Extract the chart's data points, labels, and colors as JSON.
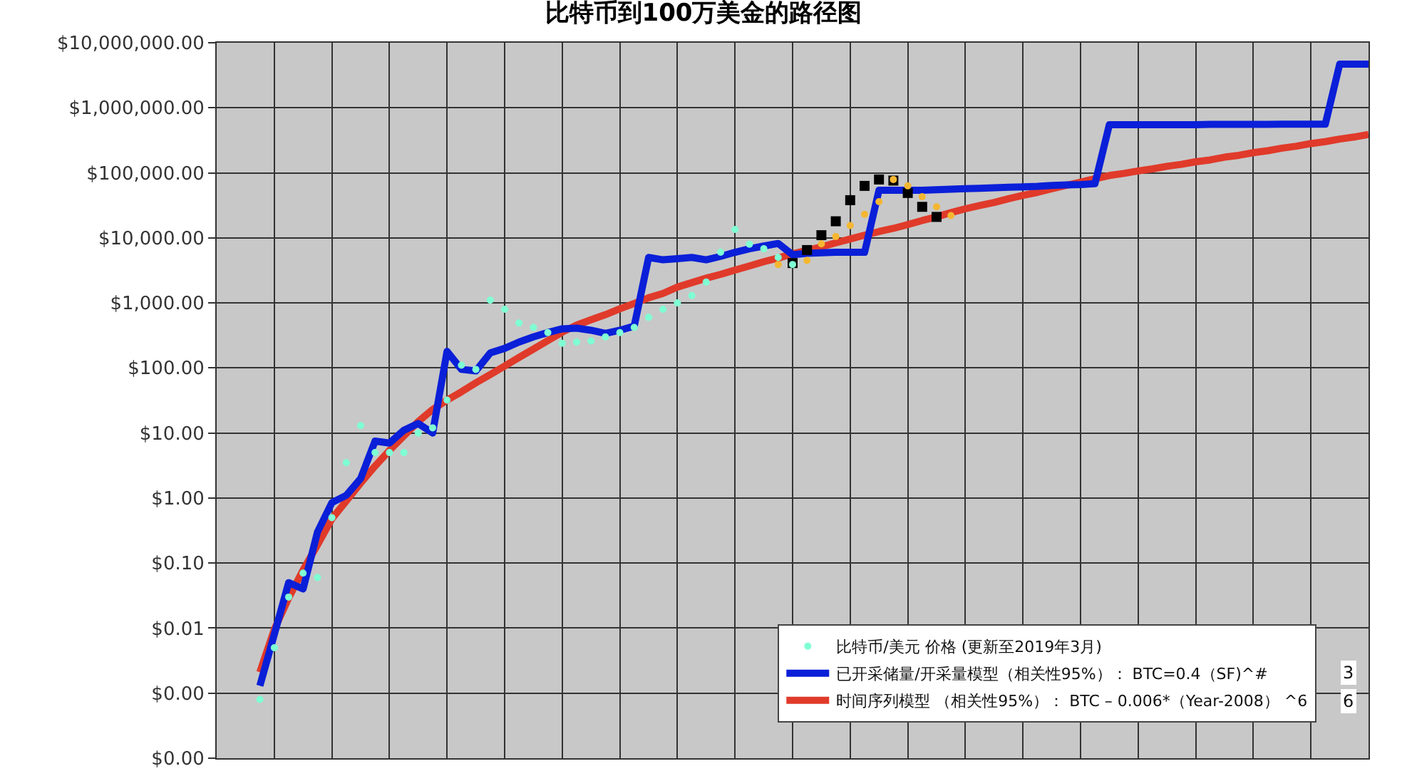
{
  "chart_data": {
    "type": "scatter",
    "title": "比特币到100万美金的路径图",
    "log": "y",
    "grid": true,
    "legend": "bottom right",
    "tick_labels": "y",
    "categories": [
      null,
      null,
      null,
      null,
      null,
      null,
      null,
      null,
      null,
      null,
      null,
      null,
      null,
      null,
      null,
      null,
      null,
      null,
      null,
      null,
      null,
      null,
      null,
      null,
      null,
      null,
      null,
      null,
      null,
      null,
      null,
      null,
      null,
      null,
      null,
      null,
      null,
      null,
      null,
      null,
      null,
      null,
      null,
      null,
      null,
      null,
      null,
      null,
      null,
      null,
      null,
      null,
      null,
      null,
      null,
      null,
      null,
      null,
      null,
      null,
      null,
      null,
      null,
      null,
      null,
      null,
      null,
      null,
      null,
      null,
      null,
      null,
      null,
      null,
      null,
      null,
      null,
      null,
      null,
      null,
      null
    ],
    "ylim": [
      0.0001,
      10000000
    ],
    "yticks": [
      {
        "value": 0.0001,
        "label": "$0.00"
      },
      {
        "value": 0.001,
        "label": "$0.00"
      },
      {
        "value": 0.01,
        "label": "$0.01"
      },
      {
        "value": 0.1,
        "label": "$0.10"
      },
      {
        "value": 1,
        "label": "$1.00"
      },
      {
        "value": 10,
        "label": "$10.00"
      },
      {
        "value": 100,
        "label": "$100.00"
      },
      {
        "value": 1000,
        "label": "$1,000.00"
      },
      {
        "value": 10000,
        "label": "$10,000.00"
      },
      {
        "value": 100000,
        "label": "$100,000.00"
      },
      {
        "value": 1000000,
        "label": "$1,000,000.00"
      },
      {
        "value": 10000000,
        "label": "$10,000,000.00"
      }
    ],
    "annotations": [
      "3",
      "6"
    ],
    "series": [
      {
        "name": "比特币/美元 价格 (更新至2019年3月)",
        "marker": "circle",
        "color": "#7fffd4",
        "values": [
          null,
          null,
          null,
          0.0008,
          0.005,
          0.03,
          0.07,
          0.06,
          0.5,
          3.5,
          13,
          5,
          5,
          5,
          10,
          12,
          32,
          110,
          95,
          1100,
          800,
          490,
          420,
          350,
          240,
          250,
          260,
          300,
          350,
          420,
          600,
          800,
          1000,
          1300,
          2100,
          6000,
          13500,
          8000,
          6800,
          5000,
          3900,
          null,
          null,
          null,
          null,
          null,
          null,
          null,
          null,
          null,
          null,
          null,
          null,
          null,
          null,
          null,
          null,
          null,
          null,
          null,
          null,
          null,
          null,
          null,
          null,
          null,
          null,
          null,
          null,
          null,
          null,
          null,
          null,
          null,
          null,
          null,
          null,
          null,
          null,
          null,
          null
        ]
      },
      {
        "name": "已开采储量/开采量模型（相关性95%）： BTC=0.4（SF)^#",
        "type": "line",
        "line_style": "solid",
        "color": "#0a1fd8",
        "values": [
          null,
          null,
          null,
          0.0013,
          0.008,
          0.05,
          0.04,
          0.3,
          0.85,
          1.1,
          2,
          7.5,
          7,
          11,
          14,
          10,
          180,
          95,
          90,
          170,
          200,
          250,
          300,
          350,
          400,
          410,
          380,
          340,
          380,
          440,
          5000,
          4600,
          4800,
          5000,
          4600,
          5200,
          6000,
          6800,
          7500,
          8200,
          5500,
          5800,
          5900,
          6000,
          6000,
          6000,
          54000,
          54000,
          54000,
          54000,
          55000,
          56000,
          57000,
          58000,
          59000,
          60000,
          61000,
          62000,
          64000,
          65000,
          66000,
          68000,
          550000,
          550000,
          550000,
          550000,
          550000,
          550000,
          550000,
          555000,
          555000,
          555000,
          555000,
          555000,
          560000,
          560000,
          560000,
          560000,
          4700000,
          4700000,
          4700000
        ]
      },
      {
        "name": "时间序列模型 （相关性95%）： BTC – 0.006*（Year-2008） ^6",
        "type": "line",
        "line_style": "solid",
        "color": "#e03a2a",
        "values": [
          null,
          null,
          null,
          0.0021,
          0.0095,
          0.029,
          0.078,
          0.19,
          0.48,
          0.9,
          1.7,
          3.1,
          5.4,
          9,
          15,
          23,
          32,
          43,
          59,
          79,
          107,
          145,
          195,
          263,
          355,
          457,
          550,
          660,
          810,
          980,
          1200,
          1400,
          1750,
          2050,
          2400,
          2750,
          3200,
          3700,
          4300,
          4900,
          5700,
          6400,
          7300,
          8400,
          9600,
          11000,
          12500,
          14000,
          16000,
          18500,
          21000,
          24500,
          28000,
          31500,
          35000,
          40000,
          45000,
          50000,
          57000,
          64000,
          72000,
          81000,
          91000,
          98000,
          107000,
          115000,
          126000,
          135000,
          148000,
          158000,
          174000,
          186000,
          204000,
          219000,
          240000,
          257000,
          282000,
          302000,
          331000,
          355000,
          390000
        ]
      },
      {
        "marker": "circle",
        "color": "#f5b731",
        "values": [
          null,
          null,
          null,
          null,
          null,
          null,
          null,
          null,
          null,
          null,
          null,
          null,
          null,
          null,
          null,
          null,
          null,
          null,
          null,
          null,
          null,
          null,
          null,
          null,
          null,
          null,
          null,
          null,
          null,
          null,
          null,
          null,
          null,
          null,
          null,
          null,
          null,
          null,
          null,
          3900,
          null,
          4500,
          8100,
          10500,
          15500,
          23000,
          36000,
          79000,
          63000,
          43000,
          30000,
          22000,
          null,
          null,
          null,
          null,
          null,
          null,
          null,
          null,
          null,
          null,
          null,
          null,
          null,
          null,
          null,
          null,
          null,
          null,
          null,
          null,
          null,
          null,
          null,
          null,
          null,
          null,
          null,
          null,
          null
        ]
      },
      {
        "marker": "square",
        "color": "#000000",
        "values": [
          null,
          null,
          null,
          null,
          null,
          null,
          null,
          null,
          null,
          null,
          null,
          null,
          null,
          null,
          null,
          null,
          null,
          null,
          null,
          null,
          null,
          null,
          null,
          null,
          null,
          null,
          null,
          null,
          null,
          null,
          null,
          null,
          null,
          null,
          null,
          null,
          null,
          null,
          null,
          null,
          4100,
          6500,
          11000,
          18000,
          38000,
          63000,
          79000,
          76000,
          49000,
          30000,
          21000,
          null,
          null,
          null,
          null,
          null,
          null,
          null,
          null,
          null,
          null,
          null,
          null,
          null,
          null,
          null,
          null,
          null,
          null,
          null,
          null,
          null,
          null,
          null,
          null,
          null,
          null,
          null,
          null,
          null,
          null
        ]
      }
    ]
  }
}
